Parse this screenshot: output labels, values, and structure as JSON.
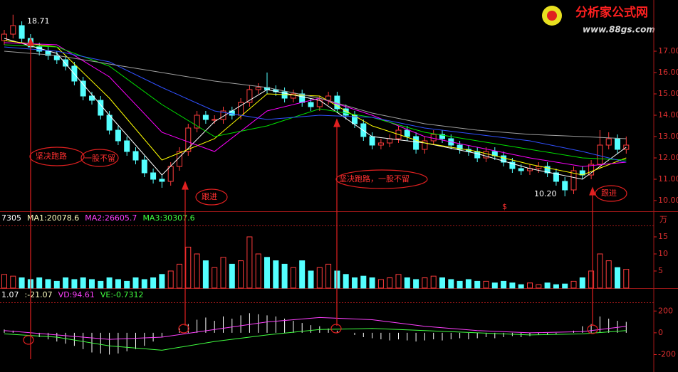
{
  "logo": {
    "title": "分析家公式网",
    "url": "www.88gs.com"
  },
  "chart_data": [
    {
      "type": "candlestick",
      "open": [
        17.5,
        17.8,
        18.2,
        17.6,
        17.2,
        17.0,
        16.8,
        16.6,
        16.3,
        15.6,
        14.9,
        14.7,
        14.0,
        13.3,
        12.8,
        12.3,
        11.9,
        11.3,
        11.0,
        10.9,
        11.6,
        12.3,
        13.4,
        14.0,
        13.8,
        13.8,
        14.2,
        14.0,
        14.6,
        15.2,
        15.3,
        15.2,
        15.1,
        14.8,
        15.0,
        14.6,
        14.4,
        14.7,
        14.9,
        14.3,
        14.0,
        13.6,
        13.0,
        12.6,
        12.7,
        12.9,
        13.3,
        13.0,
        12.4,
        12.8,
        13.1,
        12.9,
        12.6,
        12.4,
        12.3,
        12.0,
        12.3,
        12.1,
        11.8,
        11.5,
        11.4,
        11.5,
        11.6,
        11.3,
        10.9,
        10.5,
        11.4,
        11.2,
        11.7,
        12.6,
        12.9,
        12.4
      ],
      "close": [
        17.8,
        18.2,
        17.6,
        17.2,
        17.0,
        16.8,
        16.6,
        16.3,
        15.6,
        14.9,
        14.7,
        14.0,
        13.3,
        12.8,
        12.3,
        11.9,
        11.3,
        11.0,
        10.9,
        11.6,
        12.3,
        13.4,
        14.0,
        13.8,
        13.8,
        14.2,
        14.0,
        14.6,
        15.2,
        15.3,
        15.2,
        15.1,
        14.8,
        15.0,
        14.6,
        14.4,
        14.7,
        14.9,
        14.3,
        14.0,
        13.6,
        13.0,
        12.6,
        12.7,
        12.9,
        13.3,
        13.0,
        12.4,
        12.8,
        13.1,
        12.9,
        12.6,
        12.4,
        12.3,
        12.0,
        12.3,
        12.1,
        11.8,
        11.5,
        11.4,
        11.5,
        11.6,
        11.3,
        10.9,
        10.5,
        11.4,
        11.2,
        11.7,
        12.6,
        12.9,
        12.4,
        12.6
      ],
      "high": [
        18.0,
        18.71,
        18.4,
        17.8,
        17.4,
        17.2,
        17.0,
        16.8,
        16.5,
        15.8,
        15.1,
        14.9,
        14.2,
        13.5,
        13.0,
        12.5,
        12.1,
        11.5,
        11.2,
        11.8,
        12.5,
        13.6,
        14.2,
        14.2,
        14.0,
        14.4,
        14.4,
        14.8,
        15.4,
        15.5,
        16.0,
        15.4,
        15.3,
        15.2,
        15.2,
        14.8,
        14.9,
        15.1,
        15.1,
        14.5,
        14.2,
        13.8,
        13.2,
        12.9,
        13.1,
        13.5,
        13.5,
        13.2,
        13.0,
        13.3,
        13.3,
        13.1,
        12.8,
        12.6,
        12.5,
        12.5,
        12.5,
        12.3,
        12.0,
        11.7,
        11.7,
        11.8,
        11.8,
        11.5,
        11.1,
        11.6,
        11.6,
        11.9,
        13.3,
        13.2,
        13.1,
        13.0
      ],
      "low": [
        17.3,
        17.6,
        17.4,
        17.0,
        16.8,
        16.6,
        16.4,
        16.1,
        15.4,
        14.7,
        14.5,
        13.8,
        13.1,
        12.6,
        12.1,
        11.7,
        11.1,
        10.8,
        10.6,
        10.7,
        11.4,
        12.1,
        13.2,
        13.6,
        13.6,
        13.6,
        13.8,
        13.8,
        14.4,
        15.0,
        15.0,
        14.9,
        14.6,
        14.6,
        14.4,
        14.2,
        14.2,
        14.5,
        14.1,
        13.8,
        13.4,
        12.8,
        12.4,
        12.4,
        12.5,
        12.7,
        12.8,
        12.2,
        12.2,
        12.6,
        12.7,
        12.4,
        12.2,
        12.1,
        11.8,
        11.8,
        11.9,
        11.6,
        11.3,
        11.2,
        11.2,
        11.3,
        11.1,
        10.7,
        10.2,
        10.3,
        11.0,
        11.0,
        11.5,
        12.4,
        12.2,
        12.2
      ],
      "up_color": "#ff3c3c",
      "down_color": "#54ffff",
      "series": [
        {
          "color": "#ffffff",
          "x": [
            0,
            6,
            12,
            18,
            24,
            30,
            36,
            42,
            48,
            54,
            60,
            66,
            71
          ],
          "values": [
            17.6,
            16.9,
            14.0,
            11.2,
            13.7,
            15.2,
            14.7,
            13.0,
            12.7,
            12.2,
            11.5,
            11.0,
            12.5
          ]
        },
        {
          "color": "#ffff00",
          "x": [
            0,
            6,
            12,
            18,
            24,
            30,
            36,
            42,
            48,
            54,
            60,
            66,
            71
          ],
          "values": [
            17.5,
            17.2,
            14.8,
            11.9,
            12.9,
            15.0,
            14.9,
            13.5,
            12.7,
            12.3,
            11.7,
            11.2,
            12.0
          ]
        },
        {
          "color": "#ff00ff",
          "x": [
            0,
            6,
            12,
            18,
            24,
            30,
            36,
            42,
            48,
            54,
            60,
            66,
            71
          ],
          "values": [
            17.4,
            17.3,
            15.8,
            13.2,
            12.3,
            14.2,
            14.8,
            14.0,
            13.0,
            12.5,
            12.0,
            11.6,
            11.8
          ]
        },
        {
          "color": "#00e000",
          "x": [
            0,
            6,
            12,
            18,
            24,
            30,
            36,
            42,
            48,
            54,
            60,
            66,
            71
          ],
          "values": [
            17.3,
            17.2,
            16.3,
            14.5,
            13.0,
            13.5,
            14.3,
            13.9,
            13.2,
            12.8,
            12.4,
            12.0,
            11.9
          ]
        },
        {
          "color": "#3050ff",
          "x": [
            0,
            6,
            12,
            18,
            24,
            30,
            36,
            42,
            48,
            54,
            60,
            66,
            71
          ],
          "values": [
            17.2,
            17.0,
            16.5,
            15.3,
            14.2,
            13.8,
            14.0,
            13.9,
            13.4,
            13.1,
            12.8,
            12.3,
            11.8
          ]
        },
        {
          "color": "#a0a0a0",
          "x": [
            0,
            6,
            12,
            18,
            24,
            30,
            36,
            42,
            48,
            54,
            60,
            66,
            71
          ],
          "values": [
            17.0,
            16.8,
            16.4,
            16.0,
            15.6,
            15.3,
            14.8,
            14.1,
            13.6,
            13.3,
            13.1,
            13.0,
            12.9
          ]
        }
      ],
      "ylim": [
        9.5,
        19.4
      ],
      "yticks": [
        {
          "value": 10,
          "label": "10.00"
        },
        {
          "value": 11,
          "label": "11.00"
        },
        {
          "value": 12,
          "label": "12.00"
        },
        {
          "value": 13,
          "label": "13.00"
        },
        {
          "value": 14,
          "label": "14.00"
        },
        {
          "value": 15,
          "label": "15.00"
        },
        {
          "value": 16,
          "label": "16.00"
        },
        {
          "value": 17,
          "label": "17.00"
        }
      ],
      "annotations": [
        "18.71",
        "坚决跑路",
        "一股不留",
        "跟进",
        "坚决跑路，一股不留",
        "10.20",
        "跟进",
        "$"
      ]
    },
    {
      "type": "bar",
      "header": [
        {
          "text": "7305",
          "color": "#ffffff"
        },
        {
          "text": "MA1:20078.6",
          "color": "#ffffc0"
        },
        {
          "text": "MA2:26605.7",
          "color": "#ff40ff"
        },
        {
          "text": "MA3:30307.6",
          "color": "#40ff40"
        }
      ],
      "unit": "万",
      "values": [
        4,
        3.5,
        3,
        2.5,
        3,
        2.5,
        2,
        3,
        2.5,
        3,
        2.5,
        2,
        3,
        2.5,
        2,
        3,
        2.5,
        3,
        4,
        5,
        7,
        12,
        10,
        8,
        6,
        9,
        7,
        8,
        15,
        10,
        9,
        8,
        7,
        6,
        8,
        5,
        6,
        7,
        5,
        4,
        3,
        3.5,
        3,
        2.5,
        3,
        4,
        3,
        2.5,
        3,
        3.5,
        3,
        2.5,
        2,
        2.5,
        2,
        2,
        1.5,
        2,
        1.5,
        1,
        1.5,
        1,
        1.5,
        1,
        1.2,
        2,
        3,
        5,
        10,
        8,
        6,
        5.5
      ],
      "ylim": [
        0,
        18
      ],
      "yticks": [
        5,
        10,
        15
      ]
    },
    {
      "type": "indicator",
      "header": [
        {
          "text": "1.07",
          "color": "#ffffff"
        },
        {
          "text": ":-21.07",
          "color": "#ffffc0"
        },
        {
          "text": "VD:94.61",
          "color": "#ff40ff"
        },
        {
          "text": "VE:-0.7312",
          "color": "#40ff40"
        }
      ],
      "values": [
        30,
        20,
        0,
        -20,
        -40,
        -60,
        -80,
        -100,
        -120,
        -150,
        -180,
        -190,
        -200,
        -190,
        -170,
        -150,
        -120,
        -80,
        -40,
        0,
        40,
        80,
        120,
        140,
        110,
        150,
        130,
        160,
        180,
        170,
        160,
        150,
        130,
        110,
        90,
        70,
        60,
        40,
        20,
        0,
        -20,
        -40,
        -50,
        -60,
        -70,
        -60,
        -70,
        -80,
        -70,
        -60,
        -70,
        -60,
        -50,
        -60,
        -50,
        -40,
        -50,
        -40,
        -30,
        -40,
        -30,
        -20,
        -20,
        -10,
        0,
        20,
        60,
        80,
        150,
        130,
        110,
        100
      ],
      "color": "#ffffff",
      "series": [
        {
          "color": "#ff40ff",
          "x": [
            0,
            6,
            12,
            18,
            24,
            30,
            36,
            42,
            48,
            54,
            60,
            66,
            71
          ],
          "values": [
            20,
            -20,
            -60,
            -40,
            30,
            100,
            140,
            120,
            60,
            20,
            0,
            10,
            60
          ]
        },
        {
          "color": "#40ff40",
          "x": [
            0,
            6,
            12,
            18,
            24,
            30,
            36,
            42,
            48,
            54,
            60,
            66,
            71
          ],
          "values": [
            -10,
            -40,
            -120,
            -160,
            -80,
            -20,
            30,
            40,
            20,
            0,
            -20,
            -10,
            20
          ]
        }
      ],
      "ylim": [
        -360,
        280
      ],
      "yticks": [
        -200,
        0,
        200
      ]
    }
  ]
}
